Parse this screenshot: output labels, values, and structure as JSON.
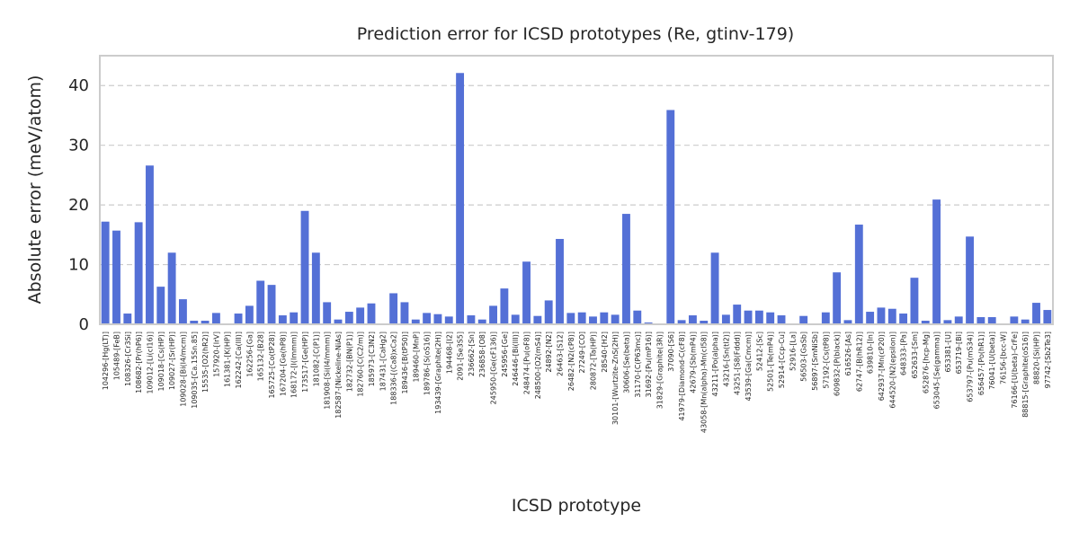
{
  "chart_data": {
    "type": "bar",
    "title": "Prediction error for ICSD prototypes (Re, gtinv-179)",
    "xlabel": "ICSD prototype",
    "ylabel": "Absolute error (meV/atom)",
    "ylim": [
      0,
      45
    ],
    "yticks": [
      0,
      10,
      20,
      30,
      40
    ],
    "grid": "y-dashed",
    "bar_color": "#5470d6",
    "categories": [
      "104296-[Hg(LT)]",
      "105489-[FeB]",
      "108326-[Cr3Si]",
      "108682-[Pr(hP6)]",
      "109012-[Li(cI16)]",
      "109018-[Cs(HP)]",
      "109027-[Sr(HP)]",
      "109028-[Bi(I4/mcm)]",
      "109035-[Ca.15Sn.85]",
      "15535-[O2(hR2)]",
      "157920-[IrV]",
      "161381-[K(HP)]",
      "162242-[Ca(III)]",
      "162256-[Ga]",
      "165132-[B28]",
      "165725-[Co(tP28)]",
      "167204-[Ge(hP8)]",
      "168172-[I(Immm)]",
      "173517-[Ge(HP)]",
      "181082-[C(P1)]",
      "181908-[Si(I4/mmm)]",
      "182587-[Nickeline-NiAs]",
      "182732-[BN(P1)]",
      "182760-[C(C2/m)]",
      "185973-[C3N2]",
      "187431-[CaHg2]",
      "188336-[(Ca8)xCa2]",
      "189436-[B(tP50)]",
      "189460-[MnP]",
      "189786-[S(oS16)]",
      "193439-[Graphite(2H)]",
      "194468-[I2]",
      "2091-[Se3S5]",
      "236662-[Sn]",
      "236858-[O8]",
      "245950-[Ge(cF136)]",
      "245956-[Ge]",
      "246446-[Bi(III)]",
      "248474-[Pu(oF8)]",
      "248500-[O2(mS4)]",
      "24892-[N2]",
      "26463-[S12]",
      "26482-[N2(cP8)]",
      "27249-[CO]",
      "280872-[Ta(HP)]",
      "28540-[H2]",
      "30101-[Wurtzite-ZnS(2H)]",
      "30606-[Se(beta)]",
      "31170-[C(P63mc)]",
      "31692-[Pu(mP16)]",
      "31829-[Graphite(3R)]",
      "37090-[S6]",
      "41979-[Diamond-C(cF8)]",
      "42679-[Sb(mP4)]",
      "43058-[Mn(alpha)-Mn(cI58)]",
      "43211-[Po(alpha)]",
      "43216-[Sn(tI2)]",
      "43251-[S8(Fddd)]",
      "43539-[Ga(Cmcm)]",
      "52412-[Sc]",
      "52501-[Te(mP4)]",
      "52914-[Ccp-Cu]",
      "52916-[La]",
      "56503-[GaSb]",
      "56897-[SmNiSb]",
      "57192-[Cs(tP8)]",
      "609832-[P(black)]",
      "616526-[As]",
      "62747-[B(hR12)]",
      "639810-[In]",
      "642937-[Mn(cP20)]",
      "644520-[N2(epsilon)]",
      "648333-[Pa]",
      "652633-[Sm]",
      "652876-[hcp-Mg]",
      "653045-[Se(gamma)]",
      "653381-[U]",
      "653719-[Bi]",
      "653797-[Pu(mS34)]",
      "656457-[Po(hR1)]",
      "76041-[U(beta)]",
      "76156-[bcc-W]",
      "76166-[U(beta)-CrFe]",
      "88815-[Graphite(oS16)]",
      "88820-[Si(HP)]",
      "97742-[Sb2Te3]"
    ],
    "values": [
      17.2,
      15.7,
      1.8,
      17.1,
      26.6,
      6.3,
      12.0,
      4.2,
      0.6,
      0.6,
      1.9,
      0.0,
      1.8,
      3.1,
      7.3,
      6.6,
      1.5,
      2.0,
      19.0,
      12.0,
      3.7,
      0.8,
      2.1,
      2.8,
      3.5,
      0.0,
      5.2,
      3.7,
      0.8,
      1.9,
      1.7,
      1.3,
      42.1,
      1.5,
      0.8,
      3.1,
      6.0,
      1.6,
      10.5,
      1.4,
      4.0,
      14.3,
      1.9,
      2.0,
      1.3,
      2.0,
      1.6,
      18.5,
      2.3,
      0.3,
      0.0,
      35.9,
      0.7,
      1.5,
      0.6,
      12.0,
      1.6,
      3.3,
      2.3,
      2.3,
      2.0,
      1.5,
      0.0,
      1.4,
      0.0,
      2.0,
      8.7,
      0.7,
      16.7,
      2.1,
      2.8,
      2.6,
      1.8,
      7.8,
      0.6,
      20.9,
      0.7,
      1.3,
      14.7,
      1.2,
      1.2,
      0.0,
      1.3,
      0.8,
      3.6,
      2.4
    ]
  }
}
